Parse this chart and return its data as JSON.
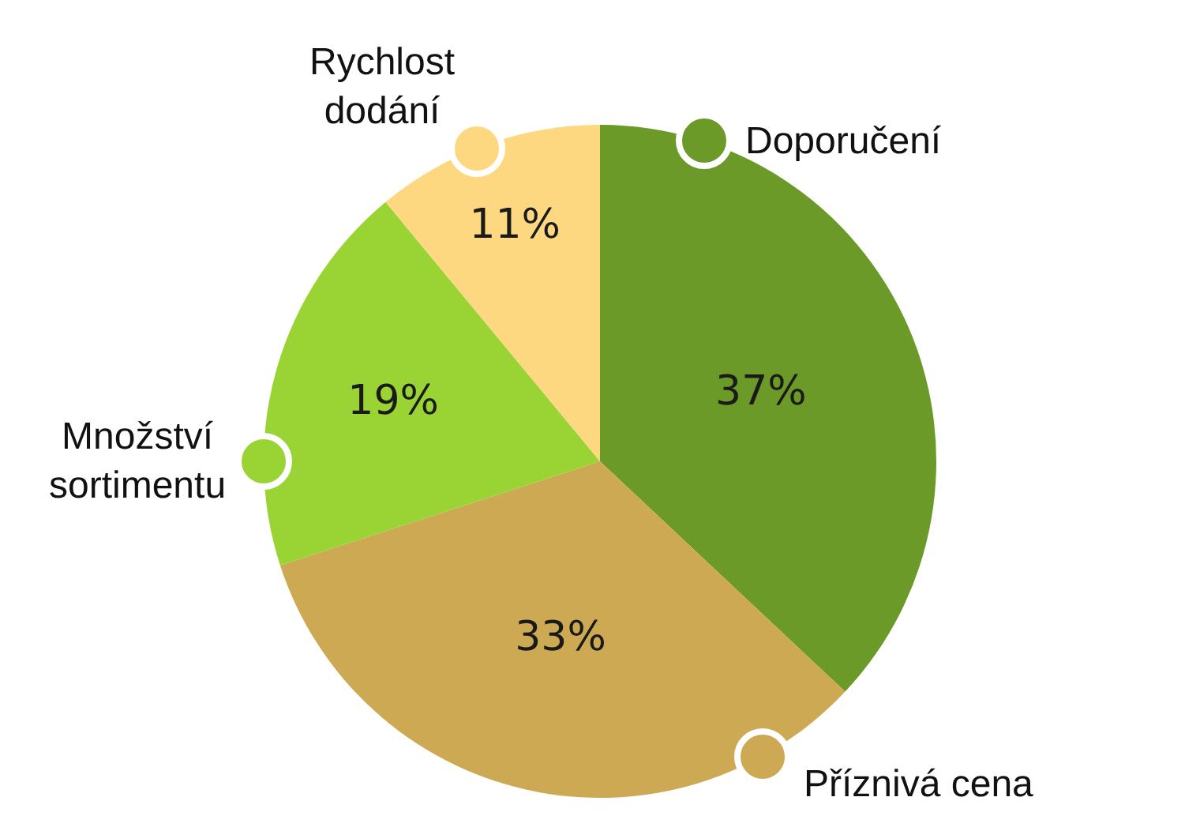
{
  "chart_data": {
    "type": "pie",
    "categories": [
      "Doporučení",
      "Příznivá cena",
      "Množství\nsortimentu",
      "Rychlost\ndodání"
    ],
    "values": [
      37,
      33,
      19,
      11
    ],
    "colors": [
      "#6b9a28",
      "#cda954",
      "#9ad434",
      "#fed880"
    ],
    "value_labels": [
      "37%",
      "33%",
      "19%",
      "11%"
    ]
  }
}
